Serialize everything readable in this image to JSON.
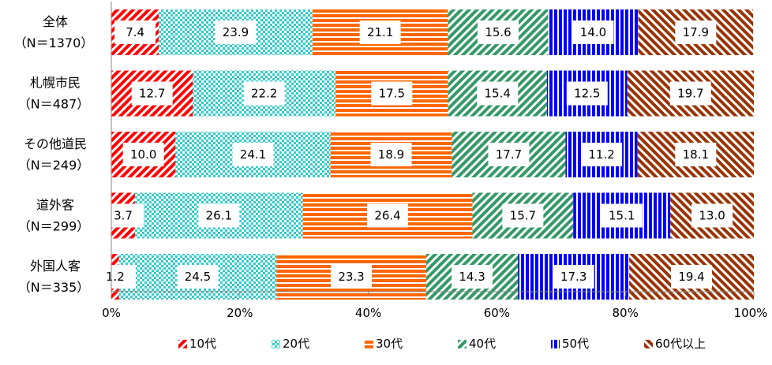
{
  "chart_data": {
    "type": "bar",
    "orientation": "horizontal",
    "stacked": true,
    "percent_stacked": true,
    "categories": [
      {
        "name": "全体",
        "n": "（N＝1370）"
      },
      {
        "name": "札幌市民",
        "n": "（N＝487）"
      },
      {
        "name": "その他道民",
        "n": "（N＝249）"
      },
      {
        "name": "道外客",
        "n": "（N＝299）"
      },
      {
        "name": "外国人客",
        "n": "（N＝335）"
      }
    ],
    "series": [
      {
        "name": "10代",
        "color": "#ff0000",
        "pattern": "diag-stripes-right",
        "values": [
          7.4,
          12.7,
          10.0,
          3.7,
          1.2
        ],
        "labels": [
          "7.4",
          "12.7",
          "10.0",
          "3.7",
          "1.2"
        ]
      },
      {
        "name": "20代",
        "color": "#33cccc",
        "pattern": "checker",
        "values": [
          23.9,
          22.2,
          24.1,
          26.1,
          24.5
        ],
        "labels": [
          "23.9",
          "22.2",
          "24.1",
          "26.1",
          "24.5"
        ]
      },
      {
        "name": "30代",
        "color": "#ff6600",
        "pattern": "horizontal-stripes",
        "values": [
          21.1,
          17.5,
          18.9,
          26.4,
          23.3
        ],
        "labels": [
          "21.1",
          "17.5",
          "18.9",
          "26.4",
          "23.3"
        ]
      },
      {
        "name": "40代",
        "color": "#339966",
        "pattern": "diag-stripes-right",
        "values": [
          15.6,
          15.4,
          17.7,
          15.7,
          14.3
        ],
        "labels": [
          "15.6",
          "15.4",
          "17.7",
          "15.7",
          "14.3"
        ]
      },
      {
        "name": "50代",
        "color": "#0000ff",
        "pattern": "vertical-stripes",
        "values": [
          14.0,
          12.5,
          11.2,
          15.1,
          17.3
        ],
        "labels": [
          "14.0",
          "12.5",
          "11.2",
          "15.1",
          "17.3"
        ]
      },
      {
        "name": "60代以上",
        "color": "#993300",
        "pattern": "diag-stripes-left",
        "values": [
          17.9,
          19.7,
          18.1,
          13.0,
          19.4
        ],
        "labels": [
          "17.9",
          "19.7",
          "18.1",
          "13.0",
          "19.4"
        ]
      }
    ],
    "xlim": [
      0,
      100
    ],
    "x_ticks": [
      "0%",
      "20%",
      "40%",
      "60%",
      "80%",
      "100%"
    ],
    "grid": false,
    "legend_position": "bottom"
  }
}
